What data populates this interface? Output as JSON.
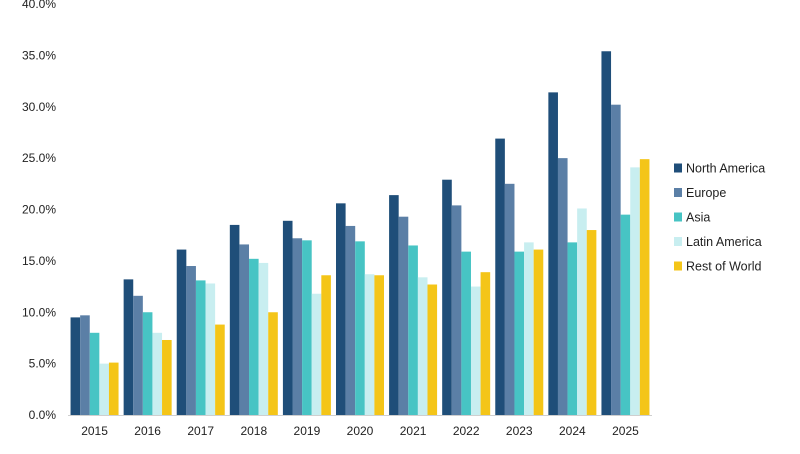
{
  "chart_data": {
    "type": "bar",
    "title": "",
    "xlabel": "",
    "ylabel": "",
    "categories": [
      "2015",
      "2016",
      "2017",
      "2018",
      "2019",
      "2020",
      "2021",
      "2022",
      "2023",
      "2024",
      "2025"
    ],
    "ylim": [
      0,
      40
    ],
    "yticks": [
      "0.0%",
      "5.0%",
      "10.0%",
      "15.0%",
      "20.0%",
      "25.0%",
      "30.0%",
      "35.0%",
      "40.0%"
    ],
    "grid": false,
    "legend_position": "right",
    "series": [
      {
        "name": "North America",
        "color": "#1f4e79",
        "values": [
          9.5,
          13.2,
          16.1,
          18.5,
          18.9,
          20.6,
          21.4,
          22.9,
          26.9,
          31.4,
          35.4
        ]
      },
      {
        "name": "Europe",
        "color": "#5b7fa6",
        "values": [
          9.7,
          11.6,
          14.5,
          16.6,
          17.2,
          18.4,
          19.3,
          20.4,
          22.5,
          25.0,
          30.2
        ]
      },
      {
        "name": "Asia",
        "color": "#47c4c4",
        "values": [
          8.0,
          10.0,
          13.1,
          15.2,
          17.0,
          16.9,
          16.5,
          15.9,
          15.9,
          16.8,
          19.5
        ]
      },
      {
        "name": "Latin America",
        "color": "#c8eef0",
        "values": [
          5.0,
          8.0,
          12.8,
          14.8,
          11.8,
          13.7,
          13.4,
          12.5,
          16.8,
          20.1,
          24.1
        ]
      },
      {
        "name": "Rest of World",
        "color": "#f4c518",
        "values": [
          5.1,
          7.3,
          8.8,
          10.0,
          13.6,
          13.6,
          12.7,
          13.9,
          16.1,
          18.0,
          24.9
        ]
      }
    ]
  }
}
